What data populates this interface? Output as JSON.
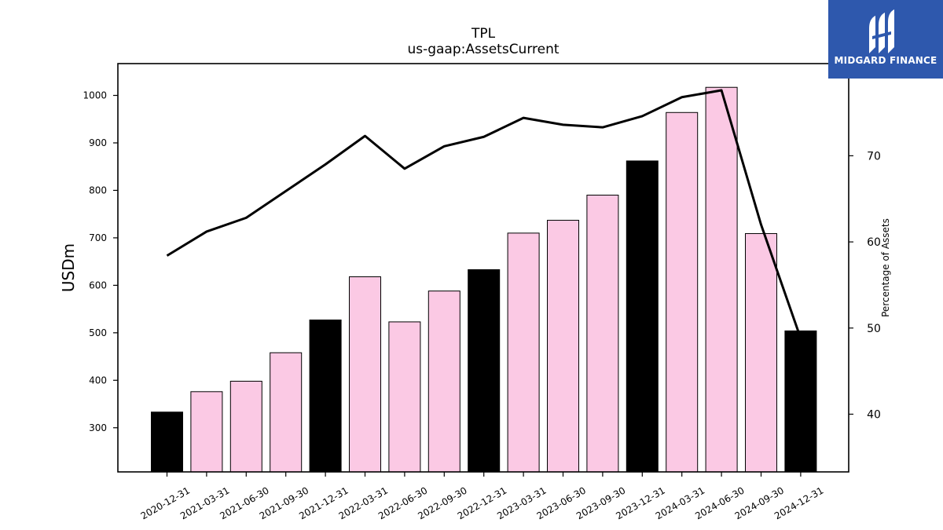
{
  "brand": {
    "name": "MIDGARD FINANCE",
    "logo_bg": "#2e58ad",
    "logo_icon": "midgard-logo-mark"
  },
  "chart_data": {
    "type": "bar",
    "title": "TPL",
    "subtitle": "us-gaap:AssetsCurrent",
    "ylabel": "USDm",
    "ylabel_right": "Percentage of Assets",
    "categories": [
      "2020-12-31",
      "2021-03-31",
      "2021-06-30",
      "2021-09-30",
      "2021-12-31",
      "2022-03-31",
      "2022-06-30",
      "2022-09-30",
      "2022-12-31",
      "2023-03-31",
      "2023-06-30",
      "2023-09-30",
      "2023-12-31",
      "2024-03-31",
      "2024-06-30",
      "2024-09-30",
      "2024-12-31"
    ],
    "series": [
      {
        "name": "",
        "type": "bar",
        "axis": "left",
        "values": [
          333,
          376,
          398,
          458,
          527,
          618,
          523,
          588,
          633,
          710,
          737,
          790,
          862,
          964,
          1017,
          709,
          504
        ]
      },
      {
        "name": "",
        "type": "line",
        "axis": "right",
        "values": [
          58.4,
          61.2,
          62.8,
          65.9,
          69.0,
          72.3,
          68.5,
          71.1,
          72.2,
          74.4,
          73.6,
          73.3,
          74.6,
          76.8,
          77.6,
          62.0,
          48.8
        ]
      }
    ],
    "bar_colors": [
      "#000000",
      "#fbc9e4",
      "#fbc9e4",
      "#fbc9e4",
      "#000000",
      "#fbc9e4",
      "#fbc9e4",
      "#fbc9e4",
      "#000000",
      "#fbc9e4",
      "#fbc9e4",
      "#fbc9e4",
      "#000000",
      "#fbc9e4",
      "#fbc9e4",
      "#fbc9e4",
      "#000000"
    ],
    "line_color": "#000000",
    "ylim": [
      207,
      1067
    ],
    "yticks": [
      300,
      400,
      500,
      600,
      700,
      800,
      900,
      1000
    ],
    "ylim_right": [
      33.3,
      80.7
    ],
    "yticks_right": [
      40,
      50,
      60,
      70
    ],
    "grid": false,
    "legend": "none"
  }
}
